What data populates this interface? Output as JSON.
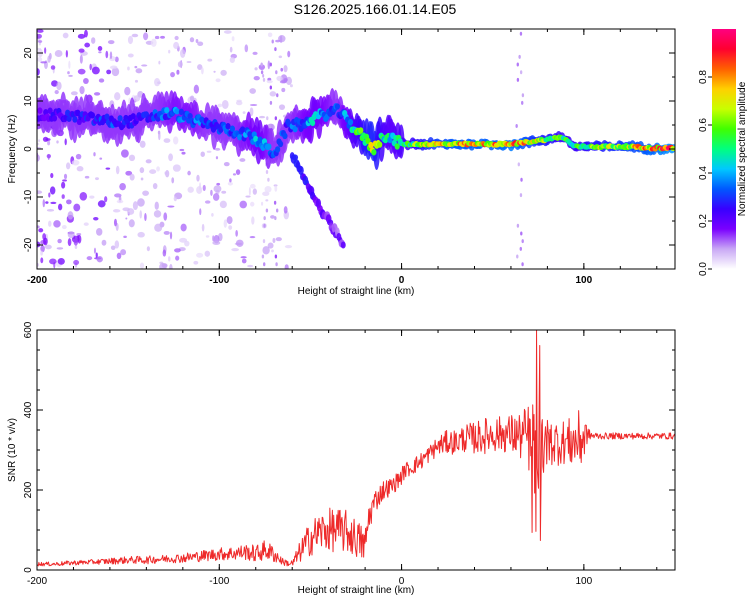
{
  "title": "S126.2025.166.01.14.E05",
  "chart_data": [
    {
      "type": "heatmap",
      "xlabel": "Height of straight line (km)",
      "ylabel": "Frequency (Hz)",
      "xlim": [
        -200,
        150
      ],
      "ylim": [
        -25,
        25
      ],
      "xticks": [
        -200,
        -100,
        0,
        100
      ],
      "yticks": [
        -20,
        -10,
        0,
        10,
        20
      ],
      "colorbar": {
        "label": "Normalized spectral amplitude",
        "range": [
          0.0,
          1.0
        ],
        "ticks": [
          0.0,
          0.2,
          0.4,
          0.6,
          0.8
        ],
        "tick_labels": [
          "0.0",
          "0.2",
          "0.4",
          "0.6",
          "0.8"
        ],
        "colormap": [
          "#ffffff",
          "#c9a8f5",
          "#7a00ff",
          "#3800ff",
          "#0058ff",
          "#00c8ff",
          "#00ff80",
          "#40ff00",
          "#c8ff00",
          "#ffd000",
          "#ff6000",
          "#ff0030",
          "#ff0080"
        ]
      },
      "ridge": {
        "x": [
          -195,
          -185,
          -175,
          -165,
          -155,
          -145,
          -135,
          -125,
          -115,
          -105,
          -95,
          -85,
          -78,
          -70,
          -62,
          -55,
          -48,
          -40,
          -35,
          -30,
          -25,
          -20,
          -15,
          -10,
          -5,
          0,
          10,
          20,
          30,
          40,
          50,
          60,
          70,
          80,
          88,
          95,
          105,
          115,
          125,
          135,
          150
        ],
        "freq": [
          7,
          7,
          6.5,
          6,
          5.5,
          6,
          7,
          7.5,
          6,
          5,
          4,
          3,
          1.5,
          -1,
          5,
          5,
          6.5,
          7.5,
          8,
          6,
          4,
          2,
          0,
          3,
          2,
          1,
          1,
          1,
          1,
          1,
          1,
          1,
          1.5,
          2,
          2.5,
          0.5,
          0.5,
          0.5,
          0.5,
          0.2,
          0.2
        ],
        "amplitude": [
          0.2,
          0.25,
          0.25,
          0.3,
          0.3,
          0.25,
          0.3,
          0.35,
          0.35,
          0.3,
          0.3,
          0.35,
          0.4,
          0.3,
          0.3,
          0.35,
          0.4,
          0.35,
          0.3,
          0.4,
          0.5,
          0.6,
          0.65,
          0.5,
          0.45,
          0.5,
          0.6,
          0.7,
          0.75,
          0.75,
          0.75,
          0.8,
          0.7,
          0.6,
          0.55,
          0.55,
          0.6,
          0.65,
          0.7,
          0.75,
          0.85
        ]
      },
      "branch": {
        "x": [
          -60,
          -55,
          -50,
          -45,
          -40,
          -35,
          -32
        ],
        "freq": [
          -1,
          -5,
          -9,
          -12,
          -15,
          -18,
          -20
        ],
        "amplitude": [
          0.2,
          0.2,
          0.15,
          0.15,
          0.1,
          0.1,
          0.1
        ]
      }
    },
    {
      "type": "line",
      "xlabel": "Height of straight line (km)",
      "ylabel": "SNR (10 * v/v)",
      "xlim": [
        -200,
        150
      ],
      "ylim": [
        0,
        600
      ],
      "xticks": [
        -200,
        -100,
        0,
        100
      ],
      "yticks": [
        0,
        200,
        400,
        600
      ],
      "series": [
        {
          "color": "#ee2a2a",
          "x": [
            -202,
            -190,
            -180,
            -170,
            -160,
            -150,
            -140,
            -130,
            -120,
            -110,
            -100,
            -92,
            -85,
            -80,
            -75,
            -70,
            -65,
            -60,
            -55,
            -50,
            -45,
            -40,
            -35,
            -30,
            -25,
            -20,
            -18,
            -15,
            -10,
            -5,
            0,
            2,
            5,
            10,
            15,
            20,
            25,
            30,
            35,
            40,
            45,
            50,
            55,
            60,
            65,
            70,
            72,
            74,
            76,
            78,
            80,
            85,
            90,
            95,
            100,
            102,
            105,
            110,
            115,
            120,
            125,
            130,
            135,
            140,
            145,
            150
          ],
          "y": [
            15,
            15,
            18,
            20,
            22,
            25,
            25,
            28,
            30,
            35,
            40,
            42,
            45,
            40,
            50,
            40,
            20,
            15,
            50,
            80,
            95,
            100,
            100,
            95,
            80,
            60,
            130,
            170,
            200,
            210,
            235,
            250,
            255,
            270,
            290,
            310,
            320,
            320,
            330,
            330,
            335,
            340,
            340,
            340,
            335,
            330,
            320,
            320,
            320,
            320,
            320,
            320,
            320,
            320,
            330,
            340,
            335,
            335,
            335,
            335,
            335,
            335,
            335,
            335,
            335,
            335
          ],
          "noise": [
            5,
            5,
            6,
            6,
            8,
            9,
            10,
            10,
            12,
            14,
            16,
            18,
            20,
            22,
            25,
            22,
            8,
            10,
            30,
            45,
            50,
            55,
            55,
            55,
            50,
            45,
            40,
            30,
            25,
            22,
            22,
            20,
            20,
            22,
            22,
            25,
            30,
            32,
            35,
            40,
            45,
            45,
            45,
            50,
            60,
            90,
            120,
            140,
            120,
            100,
            60,
            60,
            55,
            70,
            80,
            15,
            10,
            8,
            8,
            8,
            8,
            8,
            8,
            8,
            8,
            8
          ]
        }
      ]
    }
  ]
}
